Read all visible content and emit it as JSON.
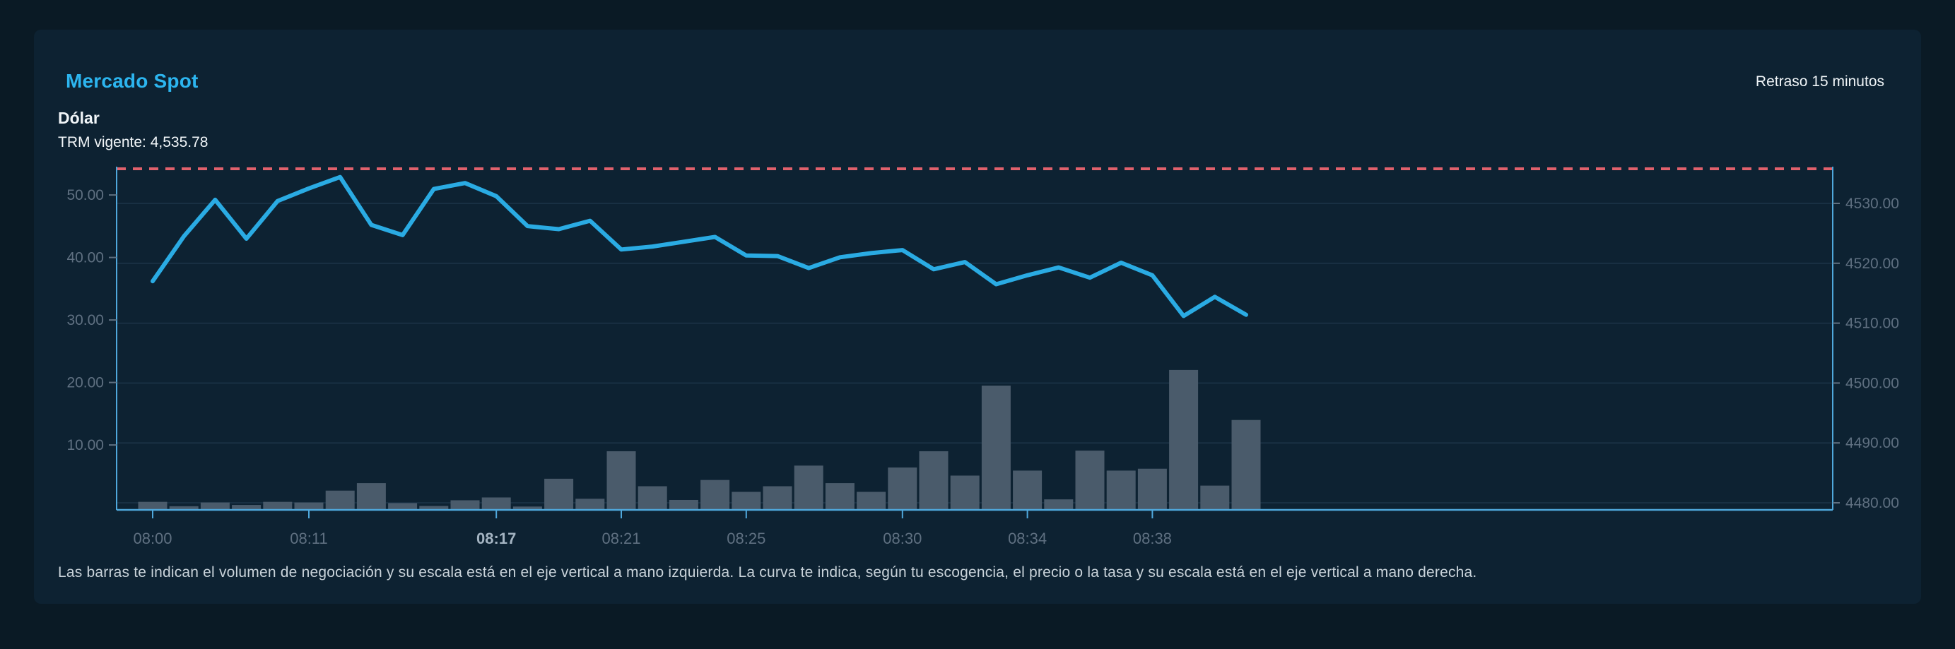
{
  "header": {
    "title": "Mercado Spot",
    "delay_note": "Retraso 15 minutos",
    "instrument": "Dólar",
    "trm_label": "TRM vigente: 4,535.78"
  },
  "footnote": "Las barras te indican el volumen de negociación y su escala está en el eje vertical a mano izquierda. La curva te indica, según tu escogencia, el precio o la tasa y su escala está en el eje vertical a mano derecha.",
  "chart_data": {
    "type": "line+bar",
    "trm_reference": 4535.78,
    "left_axis": {
      "ticks": [
        10,
        20,
        30,
        40,
        50
      ],
      "range": [
        0,
        55
      ],
      "tick_format": "0.00"
    },
    "right_axis": {
      "ticks": [
        4480,
        4490,
        4500,
        4510,
        4520,
        4530
      ],
      "range": [
        4480,
        4536.5
      ],
      "tick_format": "0.00"
    },
    "grid": "horizontal-only",
    "legend": "none",
    "x_tick_labels": [
      {
        "bar_index": 0,
        "label": "08:00",
        "emphasis": false
      },
      {
        "bar_index": 5,
        "label": "08:11",
        "emphasis": false
      },
      {
        "bar_index": 11,
        "label": "08:17",
        "emphasis": true
      },
      {
        "bar_index": 15,
        "label": "08:21",
        "emphasis": false
      },
      {
        "bar_index": 19,
        "label": "08:25",
        "emphasis": false
      },
      {
        "bar_index": 24,
        "label": "08:30",
        "emphasis": false
      },
      {
        "bar_index": 28,
        "label": "08:34",
        "emphasis": false
      },
      {
        "bar_index": 32,
        "label": "08:38",
        "emphasis": false
      }
    ],
    "series": [
      {
        "name": "Volumen de negociación",
        "type": "bar",
        "axis": "left",
        "values": [
          0.9,
          0.2,
          0.8,
          0.4,
          0.9,
          0.8,
          2.7,
          3.9,
          0.7,
          0.25,
          1.15,
          1.6,
          0.15,
          4.6,
          1.4,
          9.0,
          3.4,
          1.2,
          4.4,
          2.5,
          3.4,
          6.7,
          3.9,
          2.5,
          6.4,
          9.0,
          5.1,
          19.5,
          5.9,
          1.3,
          9.1,
          5.9,
          6.2,
          22.0,
          3.5,
          14.0
        ]
      },
      {
        "name": "Precio / Tasa",
        "type": "line",
        "axis": "right",
        "values": [
          4517.0,
          4524.5,
          4530.6,
          4524.1,
          4530.4,
          4532.5,
          4534.4,
          4526.4,
          4524.7,
          4532.4,
          4533.4,
          4531.2,
          4526.2,
          4525.7,
          4527.1,
          4522.3,
          4522.8,
          4523.6,
          4524.4,
          4521.3,
          4521.2,
          4519.2,
          4521.0,
          4521.7,
          4522.2,
          4519.0,
          4520.2,
          4516.5,
          4518.0,
          4519.3,
          4517.6,
          4520.1,
          4518.0,
          4511.2,
          4514.4,
          4511.4
        ]
      }
    ]
  },
  "colors": {
    "page_bg": "#0a1a25",
    "panel_bg": "#0d2232",
    "grid": "#1d3549",
    "axis": "#4fa8dc",
    "line": "#2aabe3",
    "bars": "#4a5b6b",
    "trm_dashed": "#e0616c",
    "title": "#2cb5ef",
    "tick_text": "#5f7081",
    "tick_text_strong": "#a4b4c2",
    "body_text": "#f0f5f8",
    "footnote_text": "#c9d3da"
  }
}
